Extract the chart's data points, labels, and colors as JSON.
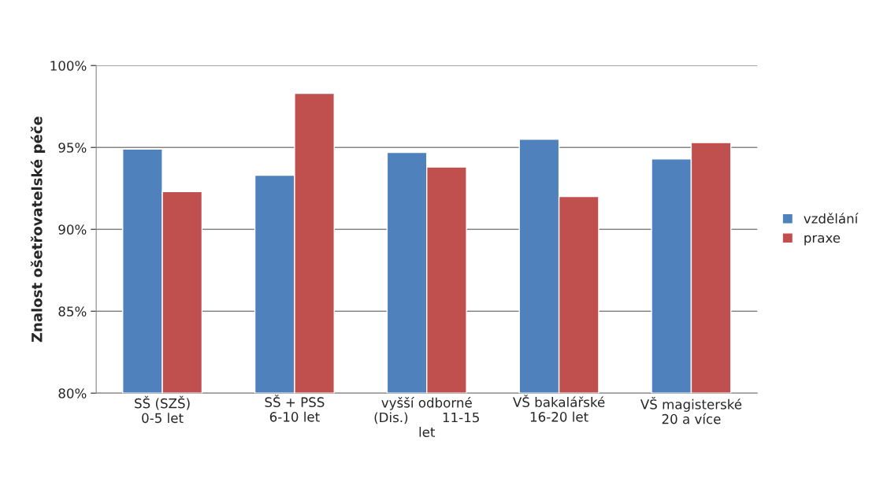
{
  "chart_data": {
    "type": "bar",
    "ylabel": "Znalost ošetřovatelské péče",
    "categories": [
      "SŠ (SZŠ)\n0-5 let",
      "SŠ + PSS\n6-10 let",
      "vyšší odborné\n(Dis.)        11-15\nlet",
      "VŠ bakalářské\n16-20 let",
      "VŠ magisterské\n20 a více"
    ],
    "series": [
      {
        "name": "vzdělání",
        "color": "#4f81bd",
        "values": [
          94.9,
          93.3,
          94.7,
          95.5,
          94.3
        ]
      },
      {
        "name": "praxe",
        "color": "#c0504d",
        "values": [
          92.3,
          98.3,
          93.8,
          92.0,
          95.3
        ]
      }
    ],
    "ylim": [
      80,
      100
    ],
    "yticks": [
      {
        "value": 80,
        "label": "80%"
      },
      {
        "value": 85,
        "label": "85%"
      },
      {
        "value": 90,
        "label": "90%"
      },
      {
        "value": 95,
        "label": "95%"
      },
      {
        "value": 100,
        "label": "100%"
      }
    ],
    "grid": "y",
    "legend": "right"
  }
}
